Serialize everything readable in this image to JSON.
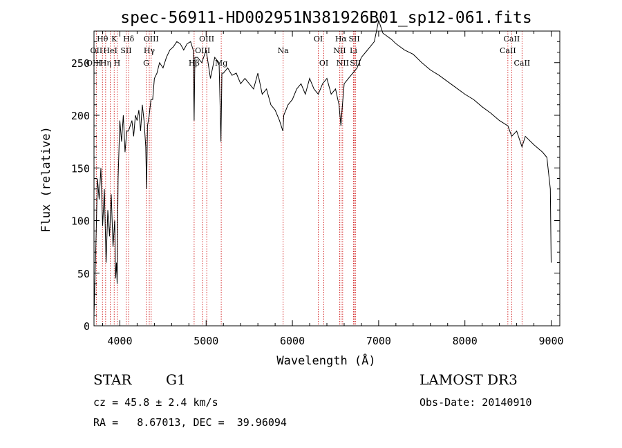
{
  "chart_data": {
    "type": "line",
    "title": "spec-56911-HD002951N381926B01_sp12-061.fits",
    "xlabel": "Wavelength (Å)",
    "ylabel": "Flux (relative)",
    "xlim": [
      3700,
      9100
    ],
    "ylim": [
      0,
      280
    ],
    "xticks": [
      4000,
      5000,
      6000,
      7000,
      8000,
      9000
    ],
    "yticks": [
      0,
      50,
      100,
      150,
      200,
      250
    ],
    "grid": false,
    "series": [
      {
        "x": [
          3700,
          3720,
          3740,
          3760,
          3780,
          3800,
          3820,
          3840,
          3860,
          3880,
          3900,
          3920,
          3940,
          3950,
          3960,
          3968,
          3980,
          4000,
          4020,
          4040,
          4060,
          4080,
          4100,
          4120,
          4140,
          4160,
          4180,
          4200,
          4220,
          4240,
          4260,
          4280,
          4300,
          4310,
          4320,
          4340,
          4360,
          4380,
          4400,
          4430,
          4460,
          4500,
          4540,
          4580,
          4620,
          4660,
          4700,
          4740,
          4780,
          4820,
          4850,
          4861,
          4870,
          4900,
          4950,
          5000,
          5050,
          5100,
          5150,
          5172,
          5183,
          5200,
          5250,
          5300,
          5350,
          5400,
          5450,
          5500,
          5550,
          5600,
          5650,
          5700,
          5750,
          5800,
          5850,
          5890,
          5900,
          5950,
          6000,
          6050,
          6100,
          6150,
          6200,
          6250,
          6300,
          6350,
          6400,
          6450,
          6500,
          6540,
          6563,
          6580,
          6600,
          6650,
          6700,
          6750,
          6800,
          6850,
          6900,
          6950,
          7000,
          7050,
          7100,
          7150,
          7200,
          7250,
          7300,
          7400,
          7500,
          7600,
          7700,
          7800,
          7900,
          8000,
          8100,
          8200,
          8300,
          8400,
          8498,
          8542,
          8600,
          8662,
          8700,
          8800,
          8900,
          8950,
          8990,
          9000
        ],
        "y": [
          10,
          70,
          140,
          120,
          150,
          95,
          130,
          60,
          110,
          85,
          125,
          75,
          100,
          45,
          60,
          40,
          140,
          195,
          175,
          200,
          165,
          185,
          185,
          190,
          195,
          180,
          200,
          195,
          205,
          185,
          210,
          195,
          170,
          130,
          190,
          200,
          215,
          215,
          235,
          240,
          250,
          245,
          255,
          262,
          265,
          270,
          268,
          262,
          268,
          270,
          262,
          195,
          255,
          255,
          250,
          262,
          235,
          255,
          250,
          175,
          240,
          240,
          245,
          238,
          240,
          230,
          235,
          230,
          225,
          240,
          220,
          225,
          210,
          205,
          195,
          185,
          200,
          210,
          215,
          225,
          230,
          220,
          235,
          225,
          220,
          230,
          235,
          220,
          225,
          210,
          190,
          210,
          230,
          235,
          240,
          245,
          255,
          260,
          265,
          270,
          290,
          278,
          275,
          272,
          268,
          265,
          262,
          258,
          250,
          243,
          238,
          232,
          226,
          220,
          215,
          208,
          202,
          195,
          190,
          180,
          185,
          170,
          180,
          172,
          165,
          160,
          130,
          60
        ]
      }
    ],
    "spectral_lines": [
      {
        "label": "Hθ",
        "wave": 3798,
        "row": 0
      },
      {
        "label": "K",
        "wave": 3934,
        "row": 0
      },
      {
        "label": "Hδ",
        "wave": 4102,
        "row": 0
      },
      {
        "label": "OIII",
        "wave": 4363,
        "row": 0
      },
      {
        "label": "OIII",
        "wave": 5007,
        "row": 0
      },
      {
        "label": "OI",
        "wave": 6300,
        "row": 0
      },
      {
        "label": "Hα",
        "wave": 6563,
        "row": 0
      },
      {
        "label": "SII",
        "wave": 6717,
        "row": 0
      },
      {
        "label": "CaII",
        "wave": 8542,
        "row": 0
      },
      {
        "label": "OII",
        "wave": 3727,
        "row": 1
      },
      {
        "label": "HeI",
        "wave": 3889,
        "row": 1
      },
      {
        "label": "SII",
        "wave": 4072,
        "row": 1
      },
      {
        "label": "Hγ",
        "wave": 4341,
        "row": 1
      },
      {
        "label": "OIII",
        "wave": 4959,
        "row": 1
      },
      {
        "label": "Na",
        "wave": 5893,
        "row": 1
      },
      {
        "label": "NII",
        "wave": 6548,
        "row": 1
      },
      {
        "label": "Li",
        "wave": 6708,
        "row": 1
      },
      {
        "label": "CaII",
        "wave": 8498,
        "row": 1
      },
      {
        "label": "OIII",
        "wave": 3700,
        "row": 2
      },
      {
        "label": "Hη",
        "wave": 3835,
        "row": 2
      },
      {
        "label": "H",
        "wave": 3968,
        "row": 2
      },
      {
        "label": "G",
        "wave": 4305,
        "row": 2
      },
      {
        "label": "Hβ",
        "wave": 4861,
        "row": 2
      },
      {
        "label": "Mg",
        "wave": 5175,
        "row": 2
      },
      {
        "label": "OI",
        "wave": 6364,
        "row": 2
      },
      {
        "label": "NII",
        "wave": 6583,
        "row": 2
      },
      {
        "label": "SII",
        "wave": 6731,
        "row": 2
      },
      {
        "label": "CaII",
        "wave": 8662,
        "row": 2
      }
    ]
  },
  "info": {
    "object_class": "STAR",
    "subclass": "G1",
    "survey": "LAMOST DR3",
    "redshift_line": "cz = 45.8 ± 2.4 km/s",
    "obs_date": "Obs-Date: 20140910",
    "coords": "RA =   8.67013, DEC =  39.96094"
  },
  "colors": {
    "spectrum": "#000000",
    "line_marker": "#cc0000",
    "axes": "#000000"
  }
}
